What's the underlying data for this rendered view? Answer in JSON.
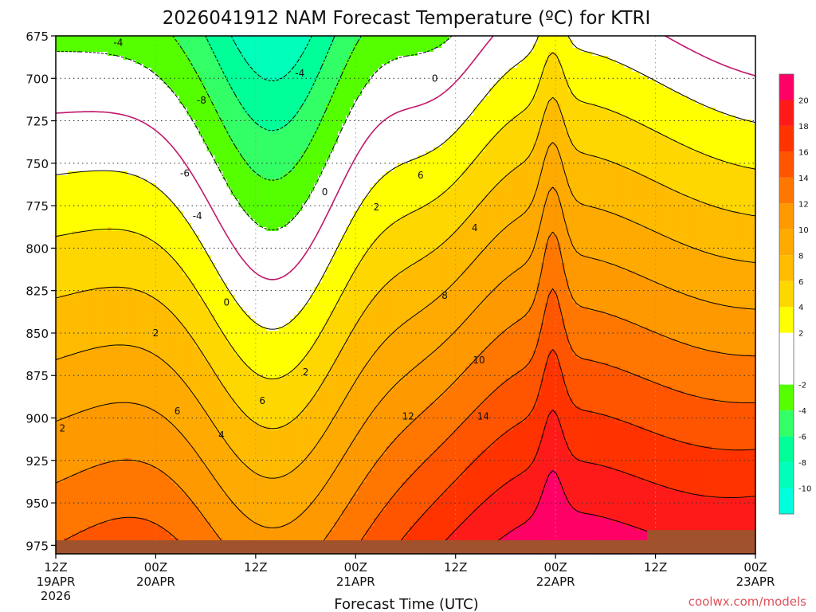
{
  "chart_data": {
    "type": "heatmap",
    "title": "2026041912 NAM Forecast Temperature (ºC) for KTRI",
    "xlabel": "Forecast Time (UTC)",
    "ylabel": "",
    "x_ticks": [
      {
        "hour": 0,
        "line1": "12Z",
        "line2": "19APR",
        "line3": "2026"
      },
      {
        "hour": 12,
        "line1": "00Z",
        "line2": "20APR",
        "line3": ""
      },
      {
        "hour": 24,
        "line1": "12Z",
        "line2": "",
        "line3": ""
      },
      {
        "hour": 36,
        "line1": "00Z",
        "line2": "21APR",
        "line3": ""
      },
      {
        "hour": 48,
        "line1": "12Z",
        "line2": "",
        "line3": ""
      },
      {
        "hour": 60,
        "line1": "00Z",
        "line2": "22APR",
        "line3": ""
      },
      {
        "hour": 72,
        "line1": "12Z",
        "line2": "",
        "line3": ""
      },
      {
        "hour": 84,
        "line1": "00Z",
        "line2": "23APR",
        "line3": ""
      }
    ],
    "x_range_hours": [
      0,
      84
    ],
    "y_ticks": [
      675,
      700,
      725,
      750,
      775,
      800,
      825,
      850,
      875,
      900,
      925,
      950,
      975
    ],
    "y_range_hPa": [
      675,
      980
    ],
    "y_inverted": true,
    "colorbar": {
      "ticks": [
        20,
        18,
        16,
        14,
        12,
        10,
        8,
        6,
        4,
        2,
        -2,
        -4,
        -6,
        -8,
        -10
      ],
      "bands": [
        {
          "lo": 20,
          "hi": 22,
          "color": "#ff0066"
        },
        {
          "lo": 18,
          "hi": 20,
          "color": "#ff1a1a"
        },
        {
          "lo": 16,
          "hi": 18,
          "color": "#ff3300"
        },
        {
          "lo": 14,
          "hi": 16,
          "color": "#ff5500"
        },
        {
          "lo": 12,
          "hi": 14,
          "color": "#ff7700"
        },
        {
          "lo": 10,
          "hi": 12,
          "color": "#ff9900"
        },
        {
          "lo": 8,
          "hi": 10,
          "color": "#ffaa00"
        },
        {
          "lo": 6,
          "hi": 8,
          "color": "#ffbb00"
        },
        {
          "lo": 4,
          "hi": 6,
          "color": "#ffd700"
        },
        {
          "lo": 2,
          "hi": 4,
          "color": "#ffff00"
        },
        {
          "lo": -2,
          "hi": 2,
          "color": "#ffffff"
        },
        {
          "lo": -4,
          "hi": -2,
          "color": "#55ff00"
        },
        {
          "lo": -6,
          "hi": -4,
          "color": "#33ff66"
        },
        {
          "lo": -8,
          "hi": -6,
          "color": "#00ff99"
        },
        {
          "lo": -10,
          "hi": -8,
          "color": "#00ffbb"
        },
        {
          "lo": -12,
          "hi": -10,
          "color": "#00ffdd"
        }
      ]
    },
    "grid": true,
    "legend": "right",
    "ground_color": "#a0522d",
    "contour_labels": [
      {
        "text": "-4",
        "hour": 7.5,
        "p": 679
      },
      {
        "text": "-4",
        "hour": 29.3,
        "p": 697
      },
      {
        "text": "-8",
        "hour": 17.5,
        "p": 713
      },
      {
        "text": "-6",
        "hour": 15.5,
        "p": 756
      },
      {
        "text": "-4",
        "hour": 17.0,
        "p": 781
      },
      {
        "text": "0",
        "hour": 45.5,
        "p": 700
      },
      {
        "text": "0",
        "hour": 32.3,
        "p": 767
      },
      {
        "text": "0",
        "hour": 20.5,
        "p": 832
      },
      {
        "text": "2",
        "hour": 38.5,
        "p": 776
      },
      {
        "text": "2",
        "hour": 12.0,
        "p": 850
      },
      {
        "text": "2",
        "hour": 30.0,
        "p": 873
      },
      {
        "text": "2",
        "hour": 0.8,
        "p": 906
      },
      {
        "text": "6",
        "hour": 43.8,
        "p": 757
      },
      {
        "text": "4",
        "hour": 50.3,
        "p": 788
      },
      {
        "text": "8",
        "hour": 46.7,
        "p": 828
      },
      {
        "text": "10",
        "hour": 50.8,
        "p": 866
      },
      {
        "text": "6",
        "hour": 14.6,
        "p": 896
      },
      {
        "text": "6",
        "hour": 24.8,
        "p": 890
      },
      {
        "text": "4",
        "hour": 19.9,
        "p": 910
      },
      {
        "text": "12",
        "hour": 42.3,
        "p": 899
      },
      {
        "text": "14",
        "hour": 51.3,
        "p": 899
      }
    ],
    "credit": "coolwx.com/models"
  }
}
